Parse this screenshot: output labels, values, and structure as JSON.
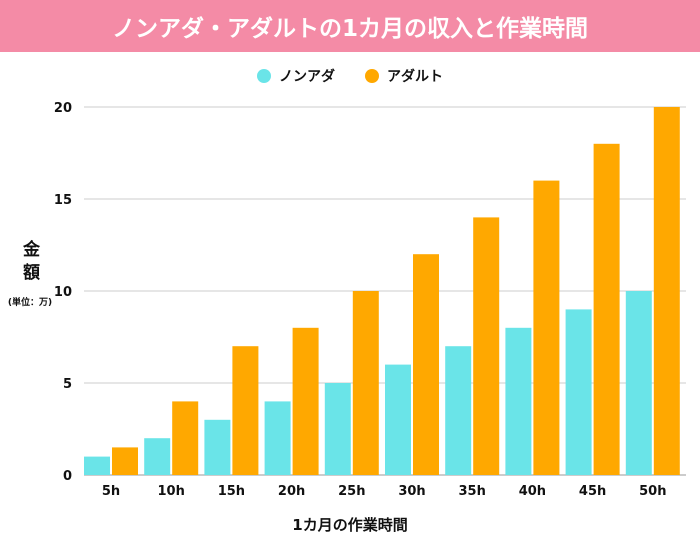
{
  "chart_data": {
    "type": "bar",
    "title": "ノンアダ・アダルトの1カ月の収入と作業時間",
    "xlabel": "1カ月の作業時間",
    "ylabel": "金額",
    "yunit": "(単位：万)",
    "categories": [
      "5h",
      "10h",
      "15h",
      "20h",
      "25h",
      "30h",
      "35h",
      "40h",
      "45h",
      "50h"
    ],
    "series": [
      {
        "name": "ノンアダ",
        "color": "#6ae4e8",
        "values": [
          1,
          2,
          3,
          4,
          5,
          6,
          7,
          8,
          9,
          10
        ]
      },
      {
        "name": "アダルト",
        "color": "#ffa800",
        "values": [
          1.5,
          4,
          7,
          8,
          10,
          12,
          14,
          16,
          18,
          20
        ]
      }
    ],
    "ylim": [
      0,
      20
    ],
    "yticks": [
      0,
      5,
      10,
      15,
      20
    ],
    "grid": true,
    "legend": "top-center",
    "title_band_color": "#f48ba6"
  }
}
